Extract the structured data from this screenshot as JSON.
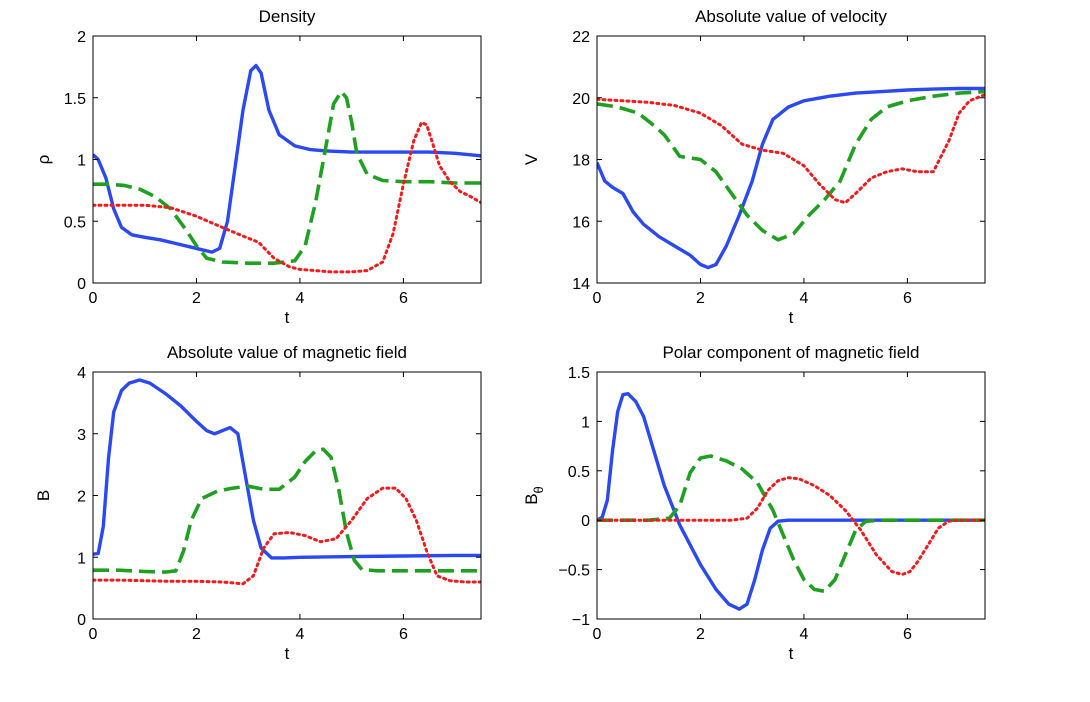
{
  "chart_data": [
    {
      "type": "line",
      "title": "Density",
      "xlabel": "t",
      "ylabel": "ρ",
      "xlim": [
        0,
        7.5
      ],
      "ylim": [
        0,
        2
      ],
      "xticks": [
        0,
        2,
        4,
        6
      ],
      "yticks": [
        0,
        0.5,
        1,
        1.5,
        2
      ],
      "xtick_labels": [
        "0",
        "2",
        "4",
        "6"
      ],
      "ytick_labels": [
        "0",
        "0.5",
        "1",
        "1.5",
        "2"
      ],
      "series": [
        {
          "name": "solid",
          "color": "#2b49f2",
          "style": "solid",
          "x": [
            0,
            0.1,
            0.25,
            0.4,
            0.55,
            0.75,
            1.0,
            1.3,
            1.6,
            1.9,
            2.1,
            2.3,
            2.45,
            2.6,
            2.75,
            2.9,
            3.05,
            3.15,
            3.25,
            3.4,
            3.6,
            3.9,
            4.2,
            4.5,
            5.0,
            5.5,
            6.0,
            6.5,
            7.0,
            7.5
          ],
          "y": [
            1.04,
            1.0,
            0.85,
            0.6,
            0.45,
            0.39,
            0.37,
            0.35,
            0.32,
            0.29,
            0.27,
            0.25,
            0.28,
            0.5,
            0.95,
            1.4,
            1.72,
            1.76,
            1.7,
            1.4,
            1.2,
            1.11,
            1.08,
            1.07,
            1.06,
            1.06,
            1.06,
            1.06,
            1.05,
            1.03
          ]
        },
        {
          "name": "dashed",
          "color": "#20a020",
          "style": "dashed",
          "x": [
            0,
            0.3,
            0.6,
            0.9,
            1.2,
            1.5,
            1.8,
            2.0,
            2.2,
            2.5,
            3.0,
            3.5,
            3.9,
            4.1,
            4.3,
            4.5,
            4.65,
            4.8,
            4.9,
            5.0,
            5.1,
            5.3,
            5.6,
            6.0,
            6.5,
            7.0,
            7.5
          ],
          "y": [
            0.8,
            0.8,
            0.79,
            0.76,
            0.7,
            0.6,
            0.43,
            0.3,
            0.2,
            0.17,
            0.16,
            0.16,
            0.18,
            0.3,
            0.65,
            1.1,
            1.45,
            1.55,
            1.5,
            1.3,
            1.05,
            0.88,
            0.83,
            0.82,
            0.82,
            0.81,
            0.81
          ]
        },
        {
          "name": "dotted",
          "color": "#ee1c1c",
          "style": "dotted",
          "x": [
            0,
            0.5,
            1.0,
            1.5,
            2.0,
            2.5,
            2.9,
            3.2,
            3.5,
            3.8,
            4.0,
            4.3,
            4.6,
            5.0,
            5.3,
            5.6,
            5.8,
            6.0,
            6.2,
            6.35,
            6.45,
            6.55,
            6.7,
            6.9,
            7.1,
            7.3,
            7.5
          ],
          "y": [
            0.63,
            0.63,
            0.63,
            0.61,
            0.54,
            0.45,
            0.38,
            0.33,
            0.2,
            0.13,
            0.11,
            0.1,
            0.09,
            0.09,
            0.1,
            0.17,
            0.4,
            0.8,
            1.15,
            1.3,
            1.28,
            1.15,
            0.95,
            0.82,
            0.74,
            0.7,
            0.65
          ]
        }
      ]
    },
    {
      "type": "line",
      "title": "Absolute value of velocity",
      "xlabel": "t",
      "ylabel": "V",
      "xlim": [
        0,
        7.5
      ],
      "ylim": [
        14,
        22
      ],
      "xticks": [
        0,
        2,
        4,
        6
      ],
      "yticks": [
        14,
        16,
        18,
        20,
        22
      ],
      "xtick_labels": [
        "0",
        "2",
        "4",
        "6"
      ],
      "ytick_labels": [
        "14",
        "16",
        "18",
        "20",
        "22"
      ],
      "series": [
        {
          "name": "solid",
          "color": "#2b49f2",
          "style": "solid",
          "x": [
            0,
            0.15,
            0.3,
            0.5,
            0.7,
            0.9,
            1.2,
            1.5,
            1.8,
            2.0,
            2.15,
            2.3,
            2.5,
            2.75,
            3.0,
            3.2,
            3.4,
            3.7,
            4.0,
            4.5,
            5.0,
            5.5,
            6.0,
            6.5,
            7.0,
            7.5
          ],
          "y": [
            17.9,
            17.3,
            17.1,
            16.9,
            16.3,
            15.9,
            15.5,
            15.2,
            14.9,
            14.6,
            14.5,
            14.6,
            15.2,
            16.2,
            17.3,
            18.5,
            19.3,
            19.7,
            19.9,
            20.05,
            20.15,
            20.2,
            20.25,
            20.28,
            20.3,
            20.3
          ]
        },
        {
          "name": "dashed",
          "color": "#20a020",
          "style": "dashed",
          "x": [
            0,
            0.4,
            0.8,
            1.1,
            1.3,
            1.6,
            2.0,
            2.3,
            2.6,
            2.9,
            3.2,
            3.5,
            3.8,
            4.1,
            4.4,
            4.7,
            5.0,
            5.3,
            5.6,
            6.0,
            6.5,
            7.0,
            7.5
          ],
          "y": [
            19.8,
            19.7,
            19.5,
            19.1,
            18.8,
            18.1,
            18.0,
            17.6,
            16.9,
            16.2,
            15.7,
            15.4,
            15.6,
            16.2,
            16.7,
            17.3,
            18.5,
            19.3,
            19.7,
            19.9,
            20.05,
            20.15,
            20.2
          ]
        },
        {
          "name": "dotted",
          "color": "#ee1c1c",
          "style": "dotted",
          "x": [
            0,
            0.5,
            1.0,
            1.5,
            2.0,
            2.4,
            2.8,
            3.2,
            3.6,
            4.0,
            4.3,
            4.6,
            4.8,
            5.0,
            5.3,
            5.6,
            5.9,
            6.2,
            6.5,
            6.8,
            7.0,
            7.2,
            7.5
          ],
          "y": [
            19.95,
            19.9,
            19.85,
            19.75,
            19.5,
            19.1,
            18.5,
            18.3,
            18.2,
            17.8,
            17.2,
            16.7,
            16.6,
            16.9,
            17.4,
            17.6,
            17.7,
            17.6,
            17.6,
            18.6,
            19.5,
            19.9,
            20.1
          ]
        }
      ]
    },
    {
      "type": "line",
      "title": "Absolute value of magnetic field",
      "xlabel": "t",
      "ylabel": "B",
      "xlim": [
        0,
        7.5
      ],
      "ylim": [
        0,
        4
      ],
      "xticks": [
        0,
        2,
        4,
        6
      ],
      "yticks": [
        0,
        1,
        2,
        3,
        4
      ],
      "xtick_labels": [
        "0",
        "2",
        "4",
        "6"
      ],
      "ytick_labels": [
        "0",
        "1",
        "2",
        "3",
        "4"
      ],
      "series": [
        {
          "name": "solid",
          "color": "#2b49f2",
          "style": "solid",
          "x": [
            0,
            0.1,
            0.2,
            0.3,
            0.4,
            0.55,
            0.7,
            0.9,
            1.1,
            1.4,
            1.7,
            2.0,
            2.2,
            2.35,
            2.5,
            2.65,
            2.8,
            2.95,
            3.1,
            3.25,
            3.45,
            3.7,
            4.0,
            5.0,
            6.0,
            7.0,
            7.5
          ],
          "y": [
            1.05,
            1.06,
            1.5,
            2.6,
            3.35,
            3.7,
            3.82,
            3.87,
            3.82,
            3.65,
            3.45,
            3.2,
            3.05,
            3.0,
            3.05,
            3.1,
            3.0,
            2.3,
            1.6,
            1.15,
            0.99,
            0.99,
            1.0,
            1.01,
            1.02,
            1.03,
            1.03
          ]
        },
        {
          "name": "dashed",
          "color": "#20a020",
          "style": "dashed",
          "x": [
            0,
            0.5,
            1.0,
            1.4,
            1.6,
            1.75,
            1.9,
            2.1,
            2.4,
            2.7,
            3.0,
            3.3,
            3.6,
            3.9,
            4.1,
            4.3,
            4.45,
            4.6,
            4.75,
            4.9,
            5.05,
            5.2,
            5.5,
            6.0,
            7.0,
            7.5
          ],
          "y": [
            0.79,
            0.79,
            0.77,
            0.76,
            0.78,
            1.1,
            1.6,
            1.95,
            2.07,
            2.12,
            2.15,
            2.1,
            2.1,
            2.3,
            2.55,
            2.72,
            2.75,
            2.62,
            2.1,
            1.4,
            0.95,
            0.8,
            0.78,
            0.78,
            0.78,
            0.78
          ]
        },
        {
          "name": "dotted",
          "color": "#ee1c1c",
          "style": "dotted",
          "x": [
            0,
            0.5,
            1.0,
            1.5,
            2.0,
            2.5,
            2.9,
            3.1,
            3.3,
            3.5,
            3.8,
            4.1,
            4.4,
            4.7,
            5.0,
            5.3,
            5.6,
            5.85,
            6.05,
            6.25,
            6.45,
            6.65,
            6.9,
            7.2,
            7.5
          ],
          "y": [
            0.63,
            0.63,
            0.62,
            0.61,
            0.61,
            0.6,
            0.57,
            0.7,
            1.15,
            1.38,
            1.4,
            1.35,
            1.25,
            1.3,
            1.6,
            1.95,
            2.12,
            2.12,
            1.95,
            1.6,
            1.1,
            0.7,
            0.62,
            0.6,
            0.6
          ]
        }
      ]
    },
    {
      "type": "line",
      "title": "Polar component of magnetic field",
      "xlabel": "t",
      "ylabel": "B_θ",
      "xlim": [
        0,
        7.5
      ],
      "ylim": [
        -1,
        1.5
      ],
      "xticks": [
        0,
        2,
        4,
        6
      ],
      "yticks": [
        -1,
        -0.5,
        0,
        0.5,
        1,
        1.5
      ],
      "xtick_labels": [
        "0",
        "2",
        "4",
        "6"
      ],
      "ytick_labels": [
        "−1",
        "−0.5",
        "0",
        "0.5",
        "1",
        "1.5"
      ],
      "series": [
        {
          "name": "solid",
          "color": "#2b49f2",
          "style": "solid",
          "x": [
            0,
            0.1,
            0.2,
            0.3,
            0.4,
            0.5,
            0.6,
            0.75,
            0.9,
            1.1,
            1.3,
            1.6,
            2.0,
            2.3,
            2.55,
            2.75,
            2.9,
            3.05,
            3.2,
            3.35,
            3.5,
            3.7,
            4.0,
            5.0,
            6.0,
            7.5
          ],
          "y": [
            0,
            0.03,
            0.2,
            0.7,
            1.1,
            1.27,
            1.28,
            1.2,
            1.05,
            0.7,
            0.35,
            -0.05,
            -0.45,
            -0.7,
            -0.85,
            -0.9,
            -0.85,
            -0.6,
            -0.3,
            -0.08,
            -0.01,
            0,
            0,
            0,
            0,
            0
          ]
        },
        {
          "name": "dashed",
          "color": "#20a020",
          "style": "dashed",
          "x": [
            0,
            0.5,
            1.0,
            1.4,
            1.6,
            1.8,
            2.0,
            2.2,
            2.5,
            2.8,
            3.1,
            3.4,
            3.6,
            3.8,
            4.0,
            4.2,
            4.4,
            4.6,
            4.8,
            5.0,
            5.2,
            5.5,
            6.0,
            7.5
          ],
          "y": [
            0,
            0,
            0,
            0.02,
            0.15,
            0.48,
            0.63,
            0.65,
            0.6,
            0.52,
            0.38,
            0.1,
            -0.15,
            -0.4,
            -0.6,
            -0.7,
            -0.72,
            -0.6,
            -0.35,
            -0.1,
            -0.01,
            0,
            0,
            0
          ]
        },
        {
          "name": "dotted",
          "color": "#ee1c1c",
          "style": "dotted",
          "x": [
            0,
            1.0,
            2.0,
            2.6,
            2.9,
            3.1,
            3.3,
            3.5,
            3.7,
            3.9,
            4.2,
            4.5,
            4.8,
            5.1,
            5.4,
            5.7,
            5.9,
            6.05,
            6.2,
            6.4,
            6.6,
            6.8,
            7.0,
            7.5
          ],
          "y": [
            0,
            0,
            0,
            0,
            0.02,
            0.12,
            0.3,
            0.4,
            0.43,
            0.42,
            0.35,
            0.25,
            0.1,
            -0.1,
            -0.35,
            -0.52,
            -0.55,
            -0.52,
            -0.42,
            -0.25,
            -0.08,
            -0.01,
            0,
            0
          ]
        }
      ]
    }
  ]
}
